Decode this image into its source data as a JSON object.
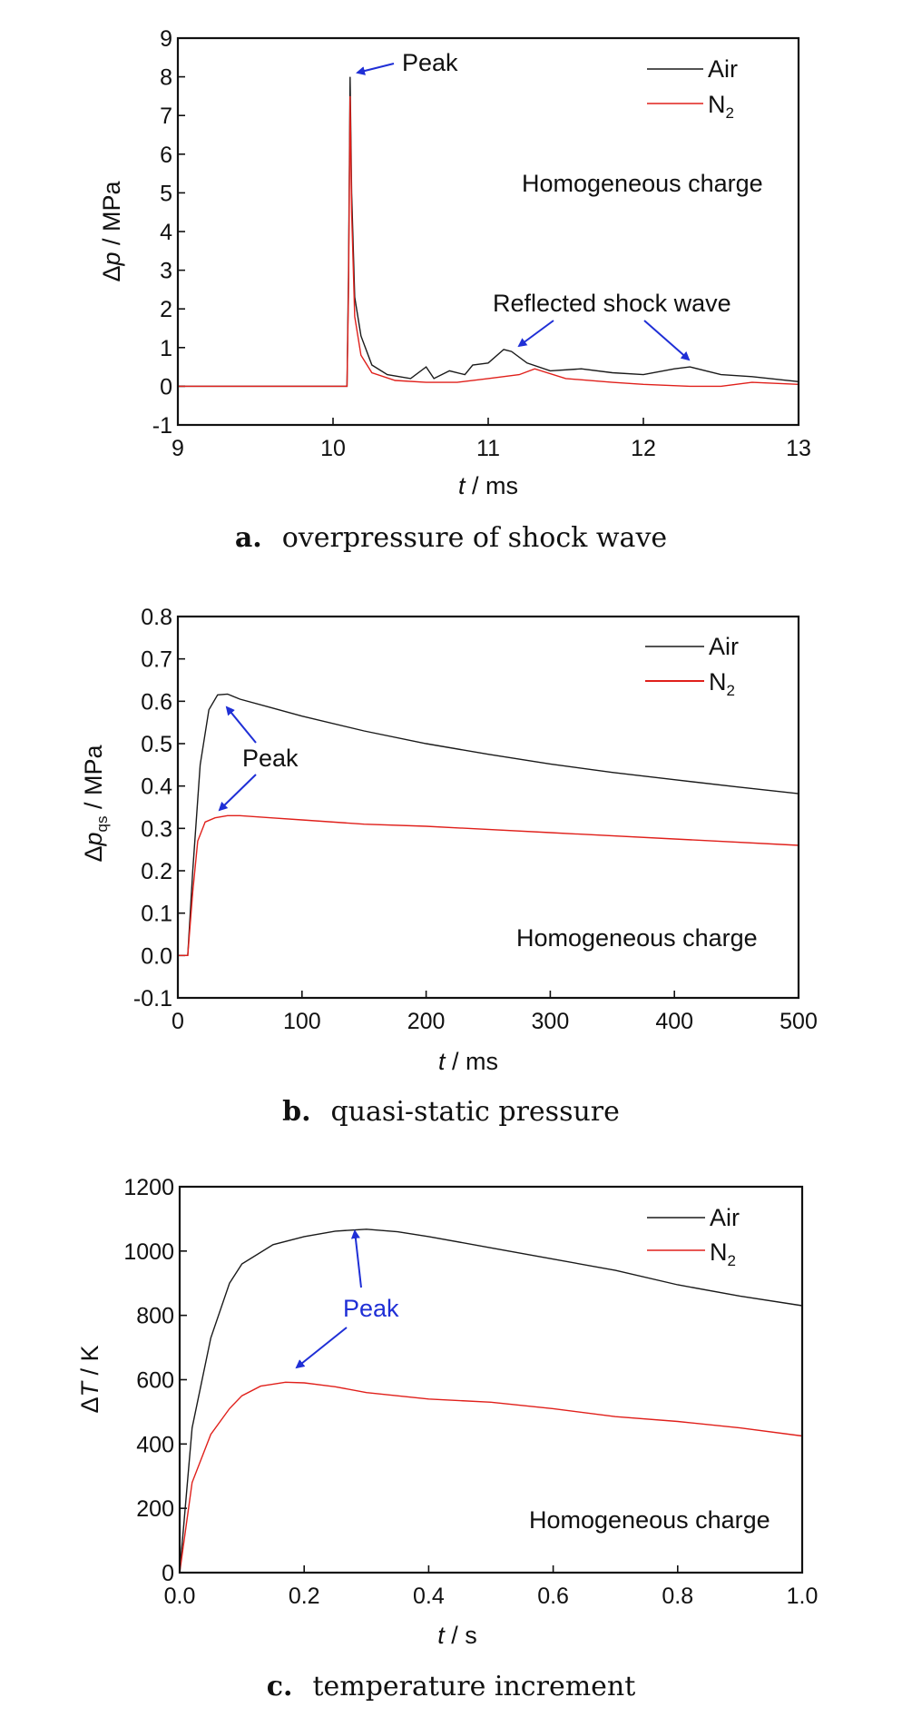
{
  "colors": {
    "air": "#1a1a1a",
    "n2": "#e0201b",
    "arrow": "#1f2fd6",
    "peak_blue_text": "#1f2fd6"
  },
  "chart_data": [
    {
      "id": "a",
      "type": "line",
      "caption_letter": "a.",
      "caption": "overpressure of shock wave",
      "xlabel_var": "t",
      "xlabel_unit": " / ms",
      "ylabel_var": "p",
      "ylabel_prefix": "Δ",
      "ylabel_sub": "",
      "ylabel_unit": " / MPa",
      "xlim": [
        9,
        13
      ],
      "ylim": [
        -1,
        9
      ],
      "xticks": [
        "9",
        "10",
        "11",
        "12",
        "13"
      ],
      "yticks": [
        "-1",
        "0",
        "1",
        "2",
        "3",
        "4",
        "5",
        "6",
        "7",
        "8",
        "9"
      ],
      "legend_position": "top-right",
      "legend": {
        "air": "Air",
        "n2_main": "N",
        "n2_sub": "2"
      },
      "annotation_text": "Homogeneous charge",
      "peak_label": "Peak",
      "reflected_label": "Reflected shock wave",
      "series": [
        {
          "name": "Air",
          "key": "air",
          "x": [
            9.0,
            10.09,
            10.1,
            10.11,
            10.12,
            10.14,
            10.18,
            10.25,
            10.35,
            10.5,
            10.6,
            10.65,
            10.75,
            10.85,
            10.9,
            11.0,
            11.1,
            11.15,
            11.25,
            11.4,
            11.6,
            11.8,
            12.0,
            12.2,
            12.3,
            12.5,
            12.7,
            13.0
          ],
          "y": [
            0.0,
            0.0,
            3.0,
            8.0,
            5.0,
            2.3,
            1.3,
            0.55,
            0.3,
            0.2,
            0.5,
            0.2,
            0.4,
            0.3,
            0.55,
            0.6,
            0.95,
            0.9,
            0.6,
            0.4,
            0.45,
            0.35,
            0.3,
            0.45,
            0.5,
            0.3,
            0.25,
            0.12
          ]
        },
        {
          "name": "N2",
          "key": "n2",
          "x": [
            9.0,
            10.09,
            10.1,
            10.11,
            10.12,
            10.14,
            10.18,
            10.25,
            10.4,
            10.6,
            10.8,
            11.0,
            11.2,
            11.3,
            11.5,
            11.8,
            12.0,
            12.3,
            12.5,
            12.7,
            13.0
          ],
          "y": [
            0.0,
            0.0,
            2.5,
            7.5,
            4.5,
            1.8,
            0.8,
            0.35,
            0.15,
            0.1,
            0.1,
            0.2,
            0.3,
            0.45,
            0.2,
            0.1,
            0.05,
            0.0,
            0.0,
            0.1,
            0.05
          ]
        }
      ]
    },
    {
      "id": "b",
      "type": "line",
      "caption_letter": "b.",
      "caption": "quasi-static pressure",
      "xlabel_var": "t",
      "xlabel_unit": " / ms",
      "ylabel_var": "p",
      "ylabel_prefix": "Δ",
      "ylabel_sub": "qs",
      "ylabel_unit": " / MPa",
      "xlim": [
        0,
        500
      ],
      "ylim": [
        -0.1,
        0.8
      ],
      "xticks": [
        "0",
        "100",
        "200",
        "300",
        "400",
        "500"
      ],
      "yticks": [
        "-0.1",
        "0.0",
        "0.1",
        "0.2",
        "0.3",
        "0.4",
        "0.5",
        "0.6",
        "0.7",
        "0.8"
      ],
      "legend_position": "top-right",
      "legend": {
        "air": "Air",
        "n2_main": "N",
        "n2_sub": "2"
      },
      "annotation_text": "Homogeneous charge",
      "peak_label": "Peak",
      "series": [
        {
          "name": "Air",
          "key": "air",
          "x": [
            0,
            8,
            12,
            18,
            25,
            32,
            40,
            50,
            75,
            100,
            150,
            200,
            250,
            300,
            350,
            400,
            450,
            500
          ],
          "y": [
            0.0,
            0.0,
            0.2,
            0.45,
            0.58,
            0.615,
            0.617,
            0.605,
            0.585,
            0.565,
            0.53,
            0.5,
            0.475,
            0.452,
            0.432,
            0.415,
            0.398,
            0.382
          ]
        },
        {
          "name": "N2",
          "key": "n2",
          "x": [
            0,
            8,
            12,
            16,
            22,
            30,
            40,
            50,
            75,
            100,
            150,
            200,
            300,
            400,
            500
          ],
          "y": [
            0.0,
            0.0,
            0.15,
            0.27,
            0.315,
            0.325,
            0.33,
            0.33,
            0.325,
            0.32,
            0.31,
            0.305,
            0.29,
            0.275,
            0.26
          ]
        }
      ]
    },
    {
      "id": "c",
      "type": "line",
      "caption_letter": "c.",
      "caption": "temperature increment",
      "xlabel_var": "t",
      "xlabel_unit": " / s",
      "ylabel_var": "T",
      "ylabel_prefix": "Δ",
      "ylabel_sub": "",
      "ylabel_unit": " / K",
      "xlim": [
        0.0,
        1.0
      ],
      "ylim": [
        0,
        1200
      ],
      "xticks": [
        "0.0",
        "0.2",
        "0.4",
        "0.6",
        "0.8",
        "1.0"
      ],
      "yticks": [
        "0",
        "200",
        "400",
        "600",
        "800",
        "1000",
        "1200"
      ],
      "legend_position": "top-right",
      "legend": {
        "air": "Air",
        "n2_main": "N",
        "n2_sub": "2"
      },
      "annotation_text": "Homogeneous charge",
      "peak_label": "Peak",
      "series": [
        {
          "name": "Air",
          "key": "air",
          "x": [
            0.0,
            0.02,
            0.05,
            0.08,
            0.1,
            0.15,
            0.2,
            0.25,
            0.3,
            0.35,
            0.4,
            0.5,
            0.6,
            0.7,
            0.8,
            0.9,
            1.0
          ],
          "y": [
            0,
            450,
            730,
            900,
            960,
            1020,
            1045,
            1062,
            1068,
            1060,
            1045,
            1010,
            975,
            940,
            895,
            860,
            830
          ]
        },
        {
          "name": "N2",
          "key": "n2",
          "x": [
            0.0,
            0.02,
            0.05,
            0.08,
            0.1,
            0.13,
            0.17,
            0.2,
            0.25,
            0.3,
            0.4,
            0.5,
            0.6,
            0.7,
            0.8,
            0.9,
            1.0
          ],
          "y": [
            0,
            280,
            430,
            510,
            550,
            580,
            592,
            590,
            578,
            560,
            540,
            530,
            510,
            485,
            470,
            450,
            425
          ]
        }
      ]
    }
  ]
}
